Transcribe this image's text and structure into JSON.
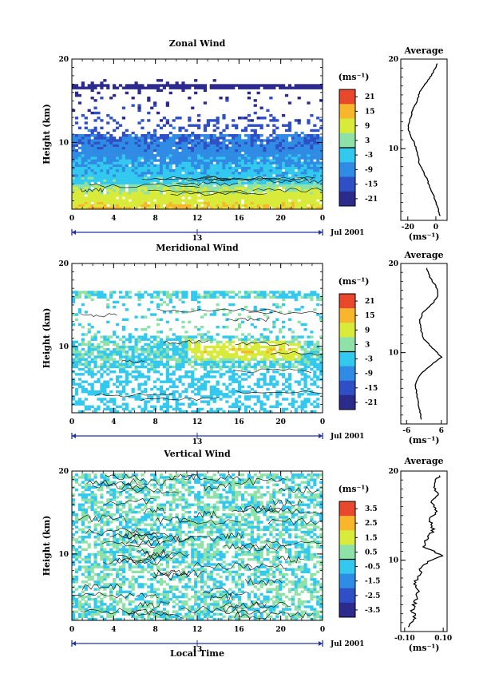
{
  "figure": {
    "date_label": "Jul 2001",
    "x_axis_label": "Local Time",
    "day_marker": "13",
    "y_axis_label": "Height (km)",
    "colorbar_unit": "(ms⁻¹)",
    "avg_title": "Average",
    "avg_unit": "(ms⁻¹)"
  },
  "chart_data": [
    {
      "type": "heatmap",
      "title": "Zonal Wind",
      "x_ticks": [
        "0",
        "4",
        "8",
        "12",
        "16",
        "20",
        "0"
      ],
      "xlim": [
        0,
        24
      ],
      "y_ticks": [
        "10",
        "20"
      ],
      "ylim": [
        2,
        20
      ],
      "colorbar": {
        "ticks": [
          "21",
          "15",
          "9",
          "3",
          "-3",
          "-9",
          "-15",
          "-21"
        ],
        "range": [
          -24,
          24
        ]
      },
      "color_scale": [
        "#2d2a8e",
        "#2f4fc7",
        "#2f8be3",
        "#33c9ef",
        "#8ee2a8",
        "#d8ea3a",
        "#f7b62c",
        "#e9482d"
      ],
      "profile": {
        "title": "Average",
        "x_ticks": [
          "-20",
          "0"
        ],
        "xlim": [
          -25,
          8
        ],
        "y_ticks": [
          "10",
          "20"
        ],
        "ylim": [
          2,
          20
        ],
        "height_km": [
          2.5,
          3.5,
          4.5,
          5.5,
          6.5,
          7.5,
          8.5,
          9.5,
          10.5,
          11.5,
          12.5,
          13.5,
          14.5,
          15.5,
          16.5,
          17.5,
          18.5,
          19.5
        ],
        "wind": [
          3,
          1,
          -1,
          -4,
          -6,
          -9,
          -12,
          -13,
          -15,
          -18,
          -20,
          -18,
          -16,
          -13,
          -11,
          -6,
          -2,
          1
        ]
      }
    },
    {
      "type": "heatmap",
      "title": "Meridional Wind",
      "x_ticks": [
        "0",
        "4",
        "8",
        "12",
        "16",
        "20",
        "0"
      ],
      "xlim": [
        0,
        24
      ],
      "y_ticks": [
        "10",
        "20"
      ],
      "ylim": [
        2,
        20
      ],
      "colorbar": {
        "ticks": [
          "21",
          "15",
          "9",
          "3",
          "-3",
          "-9",
          "-15",
          "-21"
        ],
        "range": [
          -24,
          24
        ]
      },
      "color_scale": [
        "#2d2a8e",
        "#2f4fc7",
        "#2f8be3",
        "#33c9ef",
        "#8ee2a8",
        "#d8ea3a",
        "#f7b62c",
        "#e9482d"
      ],
      "profile": {
        "title": "Average",
        "x_ticks": [
          "-6",
          "6"
        ],
        "xlim": [
          -8,
          8
        ],
        "y_ticks": [
          "10",
          "20"
        ],
        "ylim": [
          2,
          20
        ],
        "height_km": [
          2.5,
          3.5,
          4.5,
          5.5,
          6.5,
          7.5,
          8.5,
          9.5,
          10.5,
          11.5,
          12.5,
          13.5,
          14.5,
          15.5,
          16.5,
          17.5,
          18.5,
          19.5
        ],
        "wind": [
          -1,
          -1.5,
          -2,
          -2.5,
          -3,
          -1.5,
          2,
          6,
          3,
          0,
          -1,
          -1.5,
          -0.5,
          3,
          5,
          4,
          2,
          1
        ]
      }
    },
    {
      "type": "heatmap",
      "title": "Vertical Wind",
      "x_ticks": [
        "0",
        "4",
        "8",
        "12",
        "16",
        "20",
        "0"
      ],
      "xlim": [
        0,
        24
      ],
      "y_ticks": [
        "10",
        "20"
      ],
      "ylim": [
        2,
        20
      ],
      "colorbar": {
        "ticks": [
          "3.5",
          "2.5",
          "1.5",
          "0.5",
          "-0.5",
          "-1.5",
          "-2.5",
          "-3.5"
        ],
        "range": [
          -4,
          4
        ]
      },
      "color_scale": [
        "#2d2a8e",
        "#2f4fc7",
        "#2f8be3",
        "#33c9ef",
        "#8ee2a8",
        "#d8ea3a",
        "#f7b62c",
        "#e9482d"
      ],
      "profile": {
        "title": "Average",
        "x_ticks": [
          "-0.10",
          "0.10"
        ],
        "xlim": [
          -0.12,
          0.12
        ],
        "y_ticks": [
          "10",
          "20"
        ],
        "ylim": [
          2,
          20
        ],
        "height_km": [
          2.5,
          3.5,
          4.5,
          5.5,
          6.5,
          7.5,
          8.5,
          9.5,
          10.5,
          11.5,
          12.5,
          13.5,
          14.5,
          15.5,
          16.5,
          17.5,
          18.5,
          19.5
        ],
        "wind": [
          -0.08,
          -0.05,
          -0.06,
          -0.04,
          -0.03,
          -0.05,
          -0.02,
          -0.01,
          0.1,
          0.0,
          0.02,
          0.05,
          0.03,
          0.06,
          0.04,
          0.07,
          0.05,
          0.08
        ]
      }
    }
  ]
}
